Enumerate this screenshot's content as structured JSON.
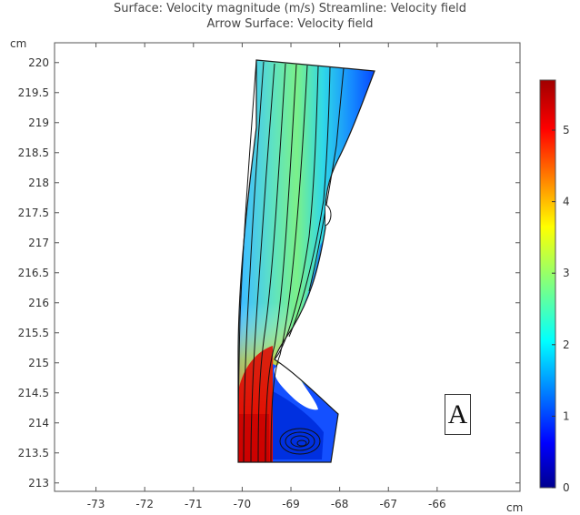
{
  "title": {
    "line1": "Surface: Velocity magnitude (m/s)  Streamline: Velocity field",
    "line2": "Arrow Surface: Velocity field"
  },
  "axes": {
    "x_unit": "cm",
    "y_unit": "cm",
    "x_ticks": [
      "-73",
      "-72",
      "-71",
      "-70",
      "-69",
      "-68",
      "-67",
      "-66"
    ],
    "y_ticks": [
      "220",
      "219.5",
      "219",
      "218.5",
      "218",
      "217.5",
      "217",
      "216.5",
      "216",
      "215.5",
      "215",
      "214.5",
      "214",
      "213.5",
      "213"
    ],
    "xlim": [
      -73.85,
      -64.3
    ],
    "ylim": [
      212.86,
      220.33
    ]
  },
  "colorbar": {
    "ticks": [
      "5",
      "4",
      "3",
      "2",
      "1",
      "0"
    ],
    "range": [
      0,
      5.7
    ],
    "colormap": [
      "#00008f",
      "#0000ff",
      "#0080ff",
      "#00ffff",
      "#80ff80",
      "#ffff00",
      "#ff8000",
      "#ff0000",
      "#a00000"
    ]
  },
  "panel_label": "A",
  "colors": {
    "frame": "#555555",
    "background": "#ffffff",
    "streamline": "#111111"
  }
}
